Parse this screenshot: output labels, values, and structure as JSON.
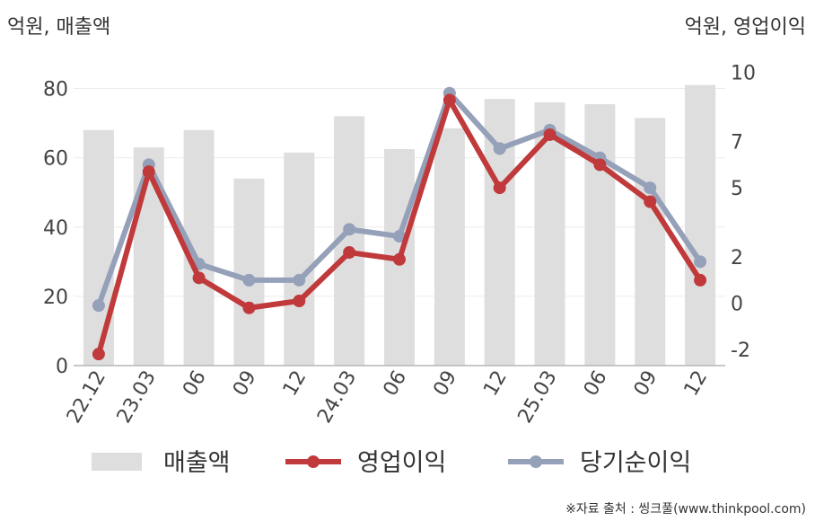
{
  "chart_data": {
    "type": "bar+line",
    "categories": [
      "22.12",
      "23.03",
      "06",
      "09",
      "12",
      "24.03",
      "06",
      "09",
      "12",
      "25.03",
      "06",
      "09",
      "12"
    ],
    "left_axis": {
      "label": "억원, 매출액",
      "ylim": [
        0,
        90
      ],
      "ticks": [
        0,
        20,
        40,
        60,
        80
      ]
    },
    "right_axis": {
      "label": "억원, 영업이익",
      "ylim": [
        -2.7,
        10.8
      ],
      "ticks": [
        -2,
        0,
        2,
        5,
        7,
        10
      ],
      "tick_labels": [
        "-2",
        "0",
        "2",
        "5",
        "7",
        "10"
      ]
    },
    "series": [
      {
        "name": "매출액",
        "kind": "bar",
        "axis": "left",
        "color": "#dedede",
        "values": [
          68,
          63,
          68,
          54,
          61.5,
          72,
          62.5,
          68.5,
          77,
          76,
          75.5,
          71.5,
          81
        ]
      },
      {
        "name": "영업이익",
        "kind": "line",
        "axis": "right",
        "color": "#c0393b",
        "values": [
          -2.2,
          5.7,
          1.1,
          -0.2,
          0.1,
          2.2,
          1.9,
          8.8,
          5.0,
          7.3,
          6.0,
          4.4,
          1.0
        ]
      },
      {
        "name": "당기순이익",
        "kind": "line",
        "axis": "right",
        "color": "#95a0b9",
        "values": [
          -0.1,
          6.0,
          1.7,
          1.0,
          1.0,
          3.2,
          2.9,
          9.1,
          6.7,
          7.5,
          6.3,
          5.0,
          1.8
        ]
      }
    ],
    "grid": true,
    "legend_position": "bottom"
  },
  "source": "※자료 출처 : 씽크풀(www.thinkpool.com)"
}
